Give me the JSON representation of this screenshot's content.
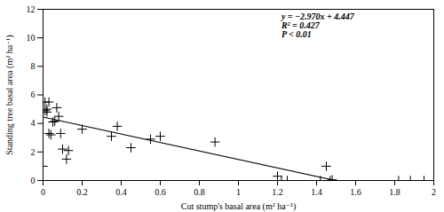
{
  "chart_data": {
    "type": "scatter",
    "xlabel": "Cut stump's basal area (m² ha⁻¹)",
    "ylabel": "Standing tree basal area (m² ha⁻¹)",
    "annotations": [
      "y = −2.970x + 4.447",
      "R² = 0.427",
      "P < 0.01"
    ],
    "xlim": [
      0,
      2
    ],
    "ylim": [
      0,
      12
    ],
    "xticks": [
      0,
      0.2,
      0.4,
      0.6,
      0.8,
      1,
      1.2,
      1.4,
      1.6,
      1.8,
      2
    ],
    "yticks": [
      0,
      2,
      4,
      6,
      8,
      10,
      12
    ],
    "grid": false,
    "series": [
      {
        "type": "scatter",
        "marker": "+",
        "color": "black",
        "x": [
          0.0,
          0.01,
          0.01,
          0.02,
          0.02,
          0.03,
          0.03,
          0.04,
          0.05,
          0.06,
          0.07,
          0.08,
          0.09,
          0.1,
          0.12,
          0.13,
          0.2,
          0.35,
          0.38,
          0.45,
          0.55,
          0.6,
          0.88,
          1.2,
          1.22,
          1.25,
          1.42,
          1.45,
          1.47,
          1.48,
          1.82,
          1.88,
          1.95
        ],
        "values": [
          1.0,
          5.5,
          4.9,
          4.8,
          5.0,
          3.3,
          5.5,
          3.2,
          4.1,
          4.15,
          5.1,
          4.5,
          3.3,
          2.2,
          1.5,
          2.1,
          3.6,
          3.1,
          3.8,
          2.3,
          2.9,
          3.1,
          2.7,
          0.3,
          0.0,
          0.0,
          0.0,
          1.0,
          0.0,
          0.05,
          0.0,
          0.0,
          0.0
        ]
      },
      {
        "type": "line",
        "color": "black",
        "line_style": "solid",
        "x": [
          0,
          1.497306397306
        ],
        "values": [
          4.447,
          0
        ]
      }
    ]
  }
}
